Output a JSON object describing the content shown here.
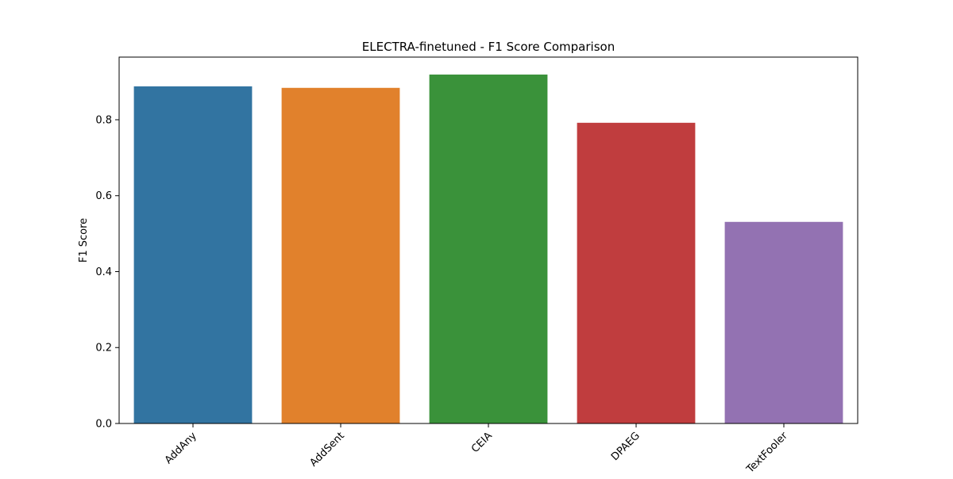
{
  "chart_data": {
    "type": "bar",
    "title": "ELECTRA-finetuned - F1 Score Comparison",
    "xlabel": "",
    "ylabel": "F1 Score",
    "categories": [
      "AddAny",
      "AddSent",
      "CEIA",
      "DPAEG",
      "TextFooler"
    ],
    "values": [
      0.888,
      0.884,
      0.919,
      0.792,
      0.531
    ],
    "colors": [
      "#3274a1",
      "#e1812c",
      "#3a923a",
      "#c03d3e",
      "#9372b2"
    ],
    "ylim": [
      0,
      0.965
    ],
    "yticks": [
      0.0,
      0.2,
      0.4,
      0.6,
      0.8
    ],
    "ytick_labels": [
      "0.0",
      "0.2",
      "0.4",
      "0.6",
      "0.8"
    ],
    "xtick_rotation": 45,
    "grid": false,
    "legend": "none"
  }
}
